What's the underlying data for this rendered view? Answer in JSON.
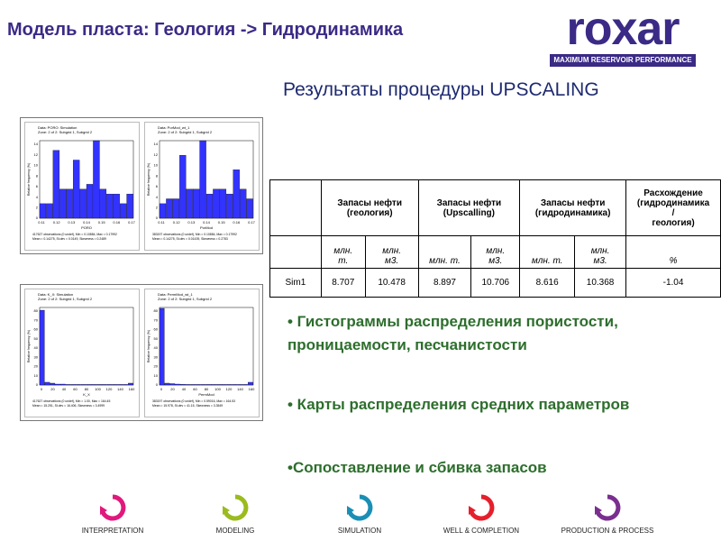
{
  "header": {
    "title": "Модель пласта: Геология -> Гидродинамика",
    "logo_word": "roxar",
    "logo_tagline": "MAXIMUM RESERVOIR PERFORMANCE"
  },
  "results_title": "Результаты процедуры UPSCALING",
  "histogram_panels": [
    {
      "cells": [
        {
          "title": "Data: PORO: Simulation\nZone: 2 of 2: Subgrid 1, Subgrid 2",
          "xlabel": "PORO",
          "ylabel": "Relative frequency (%)",
          "values": [
            3,
            3,
            14,
            6,
            6,
            12,
            6,
            7,
            16,
            6,
            5,
            5,
            3,
            5
          ],
          "ymax": 16,
          "yticks": [
            "14",
            "12",
            "10",
            "8",
            "6",
            "4",
            "2",
            "0"
          ],
          "xticks": [
            "0.11",
            "0.12",
            "0.13",
            "0.14",
            "0.15",
            "0.16",
            "0.17"
          ],
          "stats": "417627 observations (0 undef), Min = 0.10884, Max = 0.17992\nMean = 0.14275, St.dev = 0.0149, Skewness = 0.2489"
        },
        {
          "title": "Data: PorMod_wt_1\nZone: 2 of 2: Subgrid 1, Subgrid 2",
          "xlabel": "PorMod",
          "ylabel": "Relative frequency (%)",
          "values": [
            3,
            4,
            4,
            13,
            6,
            6,
            16,
            5,
            6,
            6,
            5,
            10,
            6,
            4
          ],
          "ymax": 16,
          "yticks": [
            "14",
            "12",
            "10",
            "8",
            "6",
            "4",
            "2",
            "0"
          ],
          "xticks": [
            "0.11",
            "0.12",
            "0.13",
            "0.14",
            "0.15",
            "0.16",
            "0.17"
          ],
          "stats": "383197 observations (0 undef), Min = 0.10884, Max = 0.17992\nMean = 0.14275, St.dev = 0.01439, Skewness = 0.2783"
        }
      ]
    },
    {
      "cells": [
        {
          "title": "Data: K_X: Simulation\nZone: 2 of 2: Subgrid 1, Subgrid 2",
          "xlabel": "K_X",
          "ylabel": "Relative frequency (%)",
          "values": [
            82,
            3,
            2,
            1,
            1,
            0.6,
            0.6,
            0.5,
            0.5,
            0.4,
            0.4,
            0.4,
            0.4,
            0.4,
            0.4,
            0.4,
            0.4,
            2
          ],
          "ymax": 85,
          "yticks": [
            "80",
            "70",
            "60",
            "50",
            "40",
            "30",
            "20",
            "10",
            "0"
          ],
          "xticks": [
            "0",
            "20",
            "40",
            "60",
            "80",
            "100",
            "120",
            "140",
            "160"
          ],
          "stats": "417627 observations (0 undef), Min = 1.00, Max = 164.45\nMean = 15.251, St.dev = 16.406, Skewness = 3.4999"
        },
        {
          "title": "Data: PermMod_wt_1\nZone: 2 of 2: Subgrid 1, Subgrid 2",
          "xlabel": "PermMod",
          "ylabel": "Relative frequency (%)",
          "values": [
            84,
            2,
            1.5,
            1,
            0.8,
            0.6,
            0.5,
            0.5,
            0.5,
            0.4,
            0.4,
            0.4,
            0.4,
            0.4,
            0.4,
            0.4,
            0.4,
            3
          ],
          "ymax": 85,
          "yticks": [
            "80",
            "70",
            "60",
            "50",
            "40",
            "30",
            "20",
            "10",
            "0"
          ],
          "xticks": [
            "0",
            "20",
            "40",
            "60",
            "80",
            "100",
            "120",
            "140",
            "160"
          ],
          "stats": "383197 observations (0 undef), Min = 0.59016, Max = 164.53\nMean = 15.978, St.dev = 41.15, Skewness = 3.3549"
        }
      ]
    }
  ],
  "table": {
    "headers": [
      "",
      "Запасы нефти\n(геология)",
      "Запасы нефти\n(Upscalling)",
      "Запасы нефти\n(гидродинамика)",
      "Расхождение\n(гидродинамика\n/\nгеология)"
    ],
    "units": [
      "",
      "млн.\nт.",
      "млн.\nм3.",
      "млн. т.",
      "млн.\nм3.",
      "млн. т.",
      "млн.\nм3.",
      "%"
    ],
    "row": [
      "Sim1",
      "8.707",
      "10.478",
      "8.897",
      "10.706",
      "8.616",
      "10.368",
      "-1.04"
    ]
  },
  "bullets": [
    "• Гистограммы распределения пористости, проницаемости, песчанистости",
    "• Карты распределения средних параметров",
    "•Сопоставление и сбивка запасов"
  ],
  "bottom_nav": [
    {
      "label": "INTERPRETATION",
      "color": "#e0197d",
      "icon": "interpretation-cycle-icon"
    },
    {
      "label": "MODELING",
      "color": "#9bbb1e",
      "icon": "modeling-cycle-icon"
    },
    {
      "label": "SIMULATION",
      "color": "#1a8fb5",
      "icon": "simulation-cycle-icon"
    },
    {
      "label": "WELL & COMPLETION",
      "color": "#e5202c",
      "icon": "well-completion-cycle-icon"
    },
    {
      "label": "PRODUCTION & PROCESS",
      "color": "#7a2f8f",
      "icon": "production-process-cycle-icon"
    }
  ],
  "colors": {
    "brand": "#3b2a86",
    "bullet_text": "#2d6e2d",
    "histogram_bar": "#3333ff"
  }
}
